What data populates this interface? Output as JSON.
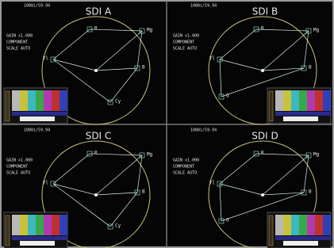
{
  "panels": [
    {
      "format": "1080i/59.94",
      "title": "SDI A",
      "info": [
        "GAIN x1.000",
        "COMPONENT",
        "SCALE AUTO"
      ],
      "targets": [
        "R",
        "Mg",
        "Yl",
        "B",
        "Cy"
      ]
    },
    {
      "format": "1080i/59.94",
      "title": "SDI B",
      "info": [
        "GAIN x1.000",
        "COMPONENT",
        "SCALE AUTO"
      ],
      "targets": [
        "R",
        "Mg",
        "Yl",
        "B",
        "G"
      ]
    },
    {
      "format": "1080i/59.94",
      "title": "SDI C",
      "info": [
        "GAIN x1.000",
        "COMPONENT",
        "SCALE AUTO"
      ],
      "targets": [
        "R",
        "Mg",
        "Yl",
        "B",
        "Cy"
      ]
    },
    {
      "format": "1080i/59.94",
      "title": "SDI D",
      "info": [
        "GAIN x1.000",
        "COMPONENT",
        "SCALE AUTO"
      ],
      "targets": [
        "R",
        "Mg",
        "Yl",
        "B",
        "G"
      ]
    }
  ]
}
